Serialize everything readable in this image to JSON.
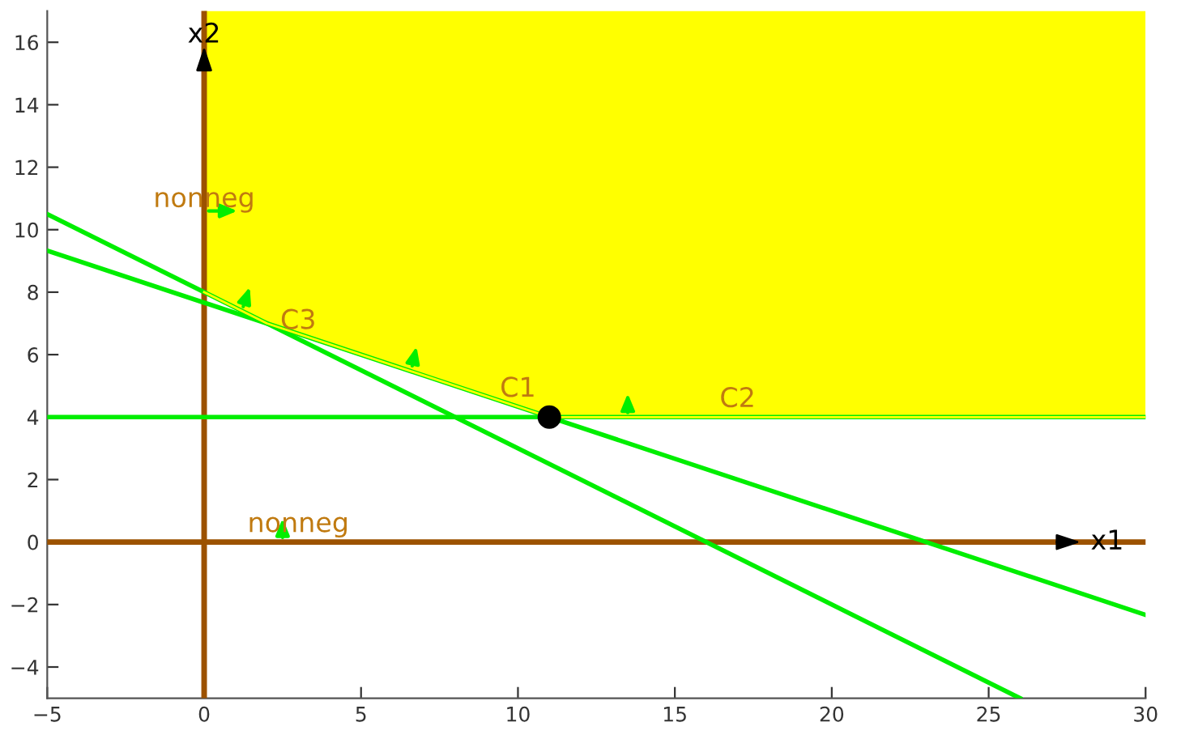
{
  "chart_data": {
    "type": "line",
    "xlim": [
      -5,
      30
    ],
    "ylim": [
      -5,
      17
    ],
    "xticks": [
      {
        "value": -5,
        "label": "−5"
      },
      0,
      5,
      10,
      15,
      20,
      25,
      30
    ],
    "yticks": [
      {
        "value": -4,
        "label": "−4"
      },
      {
        "value": -2,
        "label": "−2"
      },
      0,
      2,
      4,
      6,
      8,
      10,
      12,
      14,
      16
    ],
    "grid": false,
    "series": [
      {
        "color": "#ffff00",
        "x": [
          0,
          2,
          11,
          30
        ],
        "values": [
          8,
          7,
          4,
          4
        ],
        "lower": [
          8,
          7,
          4,
          4
        ],
        "upper": [
          17,
          17,
          17,
          17
        ]
      },
      {
        "color": "#00ee00",
        "x": [
          -5,
          26
        ],
        "values": [
          10.5,
          -5
        ]
      },
      {
        "color": "#00ee00",
        "x": [
          -5,
          30
        ],
        "values": [
          9.33,
          -2.33
        ]
      },
      {
        "color": "#00ee00",
        "x": [
          -5,
          30
        ],
        "values": [
          4,
          4
        ]
      },
      {
        "type": "scatter",
        "color": "#000000",
        "marker": "circle",
        "x": [
          11
        ],
        "values": [
          4
        ]
      }
    ],
    "ref_lines": [
      {
        "axis": "y",
        "value": 0,
        "label": "x1",
        "color": "#9c5200"
      },
      {
        "axis": "x",
        "value": 0,
        "label": "x2",
        "color": "#9c5200"
      }
    ],
    "annotations": [
      {
        "text": "C1",
        "x": 10,
        "y": 4.33
      },
      {
        "text": "C2",
        "x": 17,
        "y": 4
      },
      {
        "text": "C3",
        "x": 3,
        "y": 6.5
      },
      {
        "text": "nonneg",
        "x": 0,
        "y": 10.4
      },
      {
        "text": "nonneg",
        "x": 3,
        "y": 0
      }
    ]
  }
}
